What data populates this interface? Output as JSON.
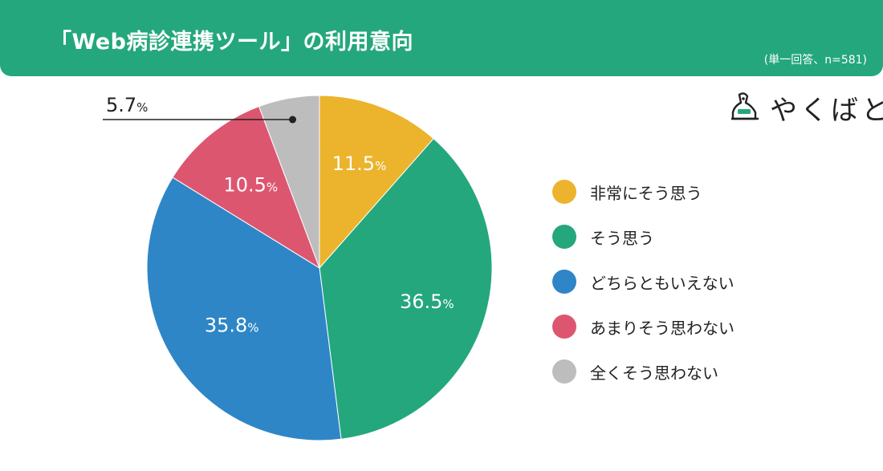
{
  "header": {
    "title": "「Web病診連携ツール」の利用意向",
    "note": "(単一回答、n=581)"
  },
  "logo": {
    "text": "やくばと"
  },
  "colors": {
    "header": "#24a77c",
    "series": [
      "#ecb32c",
      "#24a77c",
      "#2e86c7",
      "#dd5670",
      "#bdbdbd"
    ]
  },
  "chart_data": {
    "type": "pie",
    "title": "「Web病診連携ツール」の利用意向",
    "categories": [
      "非常にそう思う",
      "そう思う",
      "どちらともいえない",
      "あまりそう思わない",
      "全くそう思わない"
    ],
    "values": [
      11.5,
      36.5,
      35.8,
      10.5,
      5.7
    ],
    "value_labels": [
      "11.5",
      "36.5",
      "35.8",
      "10.5",
      "5.7"
    ],
    "unit": "%",
    "start_angle": "12 o'clock",
    "direction": "clockwise",
    "legend": "right"
  }
}
